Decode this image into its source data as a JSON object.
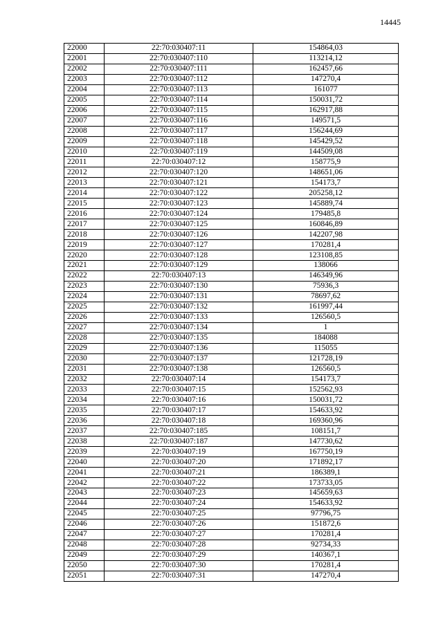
{
  "page_number": "14445",
  "rows": [
    [
      "22000",
      "22:70:030407:11",
      "154864,03"
    ],
    [
      "22001",
      "22:70:030407:110",
      "113214,12"
    ],
    [
      "22002",
      "22:70:030407:111",
      "162457,66"
    ],
    [
      "22003",
      "22:70:030407:112",
      "147270,4"
    ],
    [
      "22004",
      "22:70:030407:113",
      "161077"
    ],
    [
      "22005",
      "22:70:030407:114",
      "150031,72"
    ],
    [
      "22006",
      "22:70:030407:115",
      "162917,88"
    ],
    [
      "22007",
      "22:70:030407:116",
      "149571,5"
    ],
    [
      "22008",
      "22:70:030407:117",
      "156244,69"
    ],
    [
      "22009",
      "22:70:030407:118",
      "145429,52"
    ],
    [
      "22010",
      "22:70:030407:119",
      "144509,08"
    ],
    [
      "22011",
      "22:70:030407:12",
      "158775,9"
    ],
    [
      "22012",
      "22:70:030407:120",
      "148651,06"
    ],
    [
      "22013",
      "22:70:030407:121",
      "154173,7"
    ],
    [
      "22014",
      "22:70:030407:122",
      "205258,12"
    ],
    [
      "22015",
      "22:70:030407:123",
      "145889,74"
    ],
    [
      "22016",
      "22:70:030407:124",
      "179485,8"
    ],
    [
      "22017",
      "22:70:030407:125",
      "160846,89"
    ],
    [
      "22018",
      "22:70:030407:126",
      "142207,98"
    ],
    [
      "22019",
      "22:70:030407:127",
      "170281,4"
    ],
    [
      "22020",
      "22:70:030407:128",
      "123108,85"
    ],
    [
      "22021",
      "22:70:030407:129",
      "138066"
    ],
    [
      "22022",
      "22:70:030407:13",
      "146349,96"
    ],
    [
      "22023",
      "22:70:030407:130",
      "75936,3"
    ],
    [
      "22024",
      "22:70:030407:131",
      "78697,62"
    ],
    [
      "22025",
      "22:70:030407:132",
      "161997,44"
    ],
    [
      "22026",
      "22:70:030407:133",
      "126560,5"
    ],
    [
      "22027",
      "22:70:030407:134",
      "1"
    ],
    [
      "22028",
      "22:70:030407:135",
      "184088"
    ],
    [
      "22029",
      "22:70:030407:136",
      "115055"
    ],
    [
      "22030",
      "22:70:030407:137",
      "121728,19"
    ],
    [
      "22031",
      "22:70:030407:138",
      "126560,5"
    ],
    [
      "22032",
      "22:70:030407:14",
      "154173,7"
    ],
    [
      "22033",
      "22:70:030407:15",
      "152562,93"
    ],
    [
      "22034",
      "22:70:030407:16",
      "150031,72"
    ],
    [
      "22035",
      "22:70:030407:17",
      "154633,92"
    ],
    [
      "22036",
      "22:70:030407:18",
      "169360,96"
    ],
    [
      "22037",
      "22:70:030407:185",
      "108151,7"
    ],
    [
      "22038",
      "22:70:030407:187",
      "147730,62"
    ],
    [
      "22039",
      "22:70:030407:19",
      "167750,19"
    ],
    [
      "22040",
      "22:70:030407:20",
      "171892,17"
    ],
    [
      "22041",
      "22:70:030407:21",
      "186389,1"
    ],
    [
      "22042",
      "22:70:030407:22",
      "173733,05"
    ],
    [
      "22043",
      "22:70:030407:23",
      "145659,63"
    ],
    [
      "22044",
      "22:70:030407:24",
      "154633,92"
    ],
    [
      "22045",
      "22:70:030407:25",
      "97796,75"
    ],
    [
      "22046",
      "22:70:030407:26",
      "151872,6"
    ],
    [
      "22047",
      "22:70:030407:27",
      "170281,4"
    ],
    [
      "22048",
      "22:70:030407:28",
      "92734,33"
    ],
    [
      "22049",
      "22:70:030407:29",
      "140367,1"
    ],
    [
      "22050",
      "22:70:030407:30",
      "170281,4"
    ],
    [
      "22051",
      "22:70:030407:31",
      "147270,4"
    ]
  ]
}
